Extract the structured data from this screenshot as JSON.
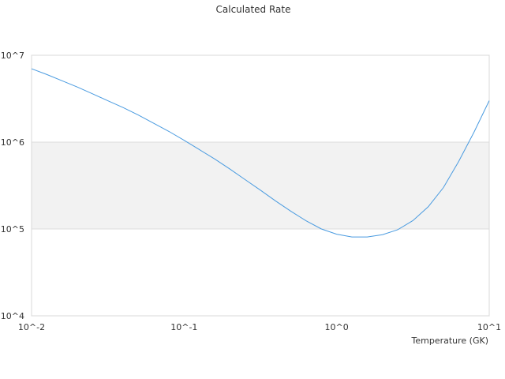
{
  "chart_data": {
    "type": "line",
    "title": "Calculated Rate",
    "xlabel": "Temperature (GK)",
    "ylabel": "",
    "xscale": "log",
    "yscale": "log",
    "xlim": [
      0.01,
      10
    ],
    "ylim": [
      10000,
      10000000
    ],
    "x_tick_labels": [
      "10^-2",
      "10^-1",
      "10^0",
      "10^1"
    ],
    "y_tick_labels": [
      "10^4",
      "10^5",
      "10^6",
      "10^7"
    ],
    "band": {
      "from": 100000,
      "to": 1000000,
      "color": "#f2f2f2"
    },
    "grid": "horizontal",
    "legend": "none",
    "line_color": "#4a9be0",
    "series": [
      {
        "x": [
          0.01,
          0.0126,
          0.0158,
          0.02,
          0.0251,
          0.0316,
          0.0398,
          0.0501,
          0.0631,
          0.0794,
          0.1,
          0.1259,
          0.1585,
          0.1995,
          0.2512,
          0.3162,
          0.3981,
          0.5012,
          0.631,
          0.7943,
          1.0,
          1.259,
          1.585,
          1.995,
          2.512,
          3.162,
          3.981,
          5.012,
          6.31,
          7.943,
          10.0
        ],
        "y": [
          7000000,
          6000000,
          5100000,
          4300000,
          3600000,
          3000000,
          2500000,
          2050000,
          1650000,
          1330000,
          1050000,
          820000,
          640000,
          490000,
          370000,
          280000,
          210000,
          160000,
          124000,
          100000,
          87000,
          81000,
          81000,
          86000,
          98000,
          125000,
          180000,
          300000,
          600000,
          1300000,
          3000000
        ]
      }
    ]
  }
}
